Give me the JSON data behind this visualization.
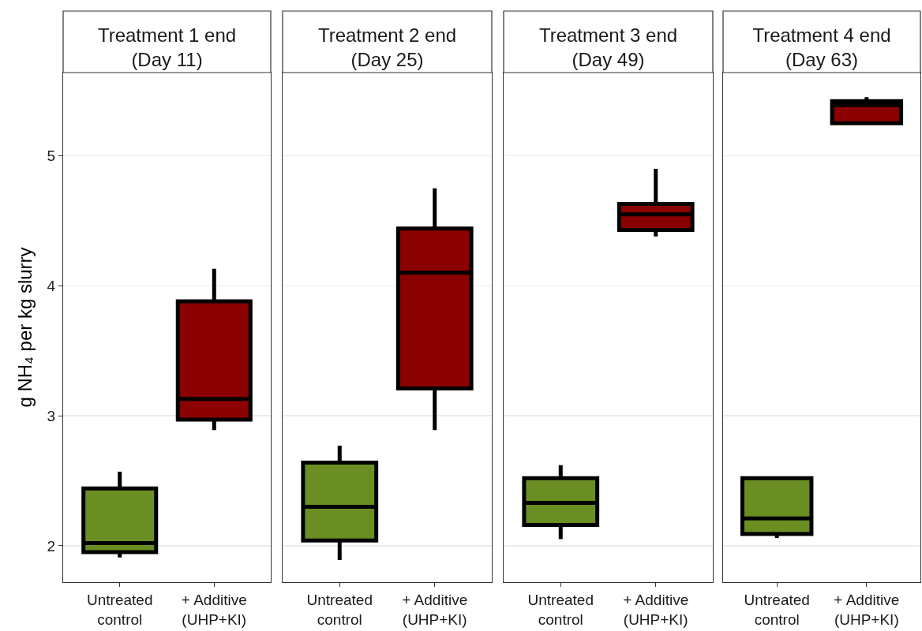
{
  "chart_data": [
    {
      "type": "box",
      "title": "Treatment 1 end\n(Day 11)",
      "ylabel": "g NH₄ per kg slurry",
      "categories": [
        "Untreated\ncontrol",
        "+ Additive\n(UHP+KI)"
      ],
      "colors": [
        "#6b8e23",
        "#8b0000"
      ],
      "ylim": [
        1.72,
        5.64
      ],
      "yticks": [
        2,
        3,
        4,
        5
      ],
      "grid": "y",
      "boxes": [
        {
          "low": 1.91,
          "q1": 1.95,
          "median": 2.02,
          "q3": 2.44,
          "high": 2.57
        },
        {
          "low": 2.89,
          "q1": 2.97,
          "median": 3.13,
          "q3": 3.88,
          "high": 4.13
        }
      ]
    },
    {
      "type": "box",
      "title": "Treatment 2 end\n(Day 25)",
      "categories": [
        "Untreated\ncontrol",
        "+ Additive\n(UHP+KI)"
      ],
      "colors": [
        "#6b8e23",
        "#8b0000"
      ],
      "ylim": [
        1.72,
        5.64
      ],
      "yticks": [
        2,
        3,
        4,
        5
      ],
      "grid": "y",
      "tick_labels": "x",
      "boxes": [
        {
          "low": 1.89,
          "q1": 2.04,
          "median": 2.3,
          "q3": 2.64,
          "high": 2.77
        },
        {
          "low": 2.89,
          "q1": 3.21,
          "median": 4.1,
          "q3": 4.44,
          "high": 4.75
        }
      ]
    },
    {
      "type": "box",
      "title": "Treatment 3 end\n(Day 49)",
      "categories": [
        "Untreated\ncontrol",
        "+ Additive\n(UHP+KI)"
      ],
      "colors": [
        "#6b8e23",
        "#8b0000"
      ],
      "ylim": [
        1.72,
        5.64
      ],
      "yticks": [
        2,
        3,
        4,
        5
      ],
      "grid": "y",
      "tick_labels": "x",
      "boxes": [
        {
          "low": 2.05,
          "q1": 2.16,
          "median": 2.33,
          "q3": 2.52,
          "high": 2.62
        },
        {
          "low": 4.38,
          "q1": 4.43,
          "median": 4.55,
          "q3": 4.63,
          "high": 4.9
        }
      ]
    },
    {
      "type": "box",
      "title": "Treatment 4 end\n(Day 63)",
      "categories": [
        "Untreated\ncontrol",
        "+ Additive\n(UHP+KI)"
      ],
      "colors": [
        "#6b8e23",
        "#8b0000"
      ],
      "ylim": [
        1.72,
        5.64
      ],
      "yticks": [
        2,
        3,
        4,
        5
      ],
      "grid": "y",
      "tick_labels": "x",
      "boxes": [
        {
          "low": 2.06,
          "q1": 2.09,
          "median": 2.21,
          "q3": 2.52,
          "high": 2.53
        },
        {
          "low": 5.24,
          "q1": 5.25,
          "median": 5.39,
          "q3": 5.42,
          "high": 5.45
        }
      ]
    }
  ]
}
